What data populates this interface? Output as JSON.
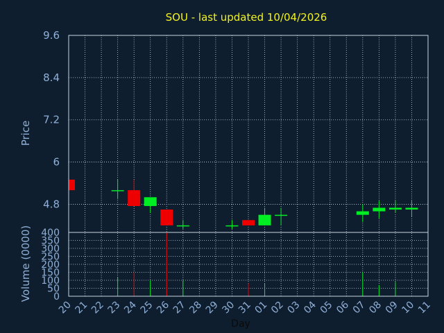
{
  "chart_data": [
    {
      "type": "candlestick",
      "title": "SOU - last updated 10/04/2026",
      "ylabel": "Price",
      "ylim": [
        4.0,
        9.6
      ],
      "yticks": [
        "9.6",
        "8.4",
        "7.2",
        "6",
        "4.8"
      ],
      "xlabel": "Day",
      "x": [
        "20",
        "21",
        "22",
        "23",
        "24",
        "25",
        "26",
        "27",
        "28",
        "29",
        "30",
        "31",
        "01",
        "02",
        "03",
        "04",
        "05",
        "06",
        "07",
        "08",
        "09",
        "10",
        "11"
      ],
      "candles": [
        {
          "day": "20",
          "open": 5.2,
          "high": 5.5,
          "low": 5.2,
          "close": 5.5,
          "color": "red"
        },
        {
          "day": "23",
          "open": 5.2,
          "high": 5.5,
          "low": 4.95,
          "close": 5.2,
          "color": "green"
        },
        {
          "day": "24",
          "open": 5.2,
          "high": 5.5,
          "low": 4.75,
          "close": 4.75,
          "color": "red"
        },
        {
          "day": "25",
          "open": 4.75,
          "high": 4.95,
          "low": 4.55,
          "close": 5.0,
          "color": "green"
        },
        {
          "day": "26",
          "open": 4.65,
          "high": 4.65,
          "low": 4.2,
          "close": 4.2,
          "color": "red"
        },
        {
          "day": "27",
          "open": 4.2,
          "high": 4.35,
          "low": 4.1,
          "close": 4.2,
          "color": "green"
        },
        {
          "day": "30",
          "open": 4.2,
          "high": 4.35,
          "low": 4.1,
          "close": 4.2,
          "color": "green"
        },
        {
          "day": "31",
          "open": 4.2,
          "high": 4.35,
          "low": 4.2,
          "close": 4.35,
          "color": "red"
        },
        {
          "day": "01",
          "open": 4.2,
          "high": 4.7,
          "low": 4.2,
          "close": 4.5,
          "color": "green"
        },
        {
          "day": "02",
          "open": 4.5,
          "high": 4.7,
          "low": 4.2,
          "close": 4.5,
          "color": "green"
        },
        {
          "day": "07",
          "open": 4.5,
          "high": 4.8,
          "low": 4.3,
          "close": 4.6,
          "color": "green"
        },
        {
          "day": "08",
          "open": 4.6,
          "high": 4.9,
          "low": 4.4,
          "close": 4.7,
          "color": "green"
        },
        {
          "day": "09",
          "open": 4.65,
          "high": 4.9,
          "low": 4.55,
          "close": 4.7,
          "color": "green"
        },
        {
          "day": "10",
          "open": 4.65,
          "high": 4.9,
          "low": 4.45,
          "close": 4.7,
          "color": "green"
        }
      ]
    },
    {
      "type": "bar",
      "ylabel": "Volume (0000)",
      "ylim": [
        0,
        400
      ],
      "yticks": [
        "400",
        "350",
        "300",
        "250",
        "200",
        "150",
        "100",
        "50",
        "0"
      ],
      "volume": [
        {
          "day": "23",
          "value": 120,
          "color": "green"
        },
        {
          "day": "24",
          "value": 150,
          "color": "red"
        },
        {
          "day": "25",
          "value": 100,
          "color": "green"
        },
        {
          "day": "26",
          "value": 400,
          "color": "red"
        },
        {
          "day": "27",
          "value": 100,
          "color": "green"
        },
        {
          "day": "31",
          "value": 80,
          "color": "red"
        },
        {
          "day": "01",
          "value": 80,
          "color": "green"
        },
        {
          "day": "07",
          "value": 150,
          "color": "green"
        },
        {
          "day": "08",
          "value": 70,
          "color": "green"
        },
        {
          "day": "09",
          "value": 90,
          "color": "green"
        }
      ]
    }
  ],
  "colors": {
    "background": "#0f1e2e",
    "up": "#00ee22",
    "down": "#ee0000",
    "title": "#f2f21e",
    "axis_text": "#8fb0d8",
    "grid": "#c8d4e0"
  }
}
